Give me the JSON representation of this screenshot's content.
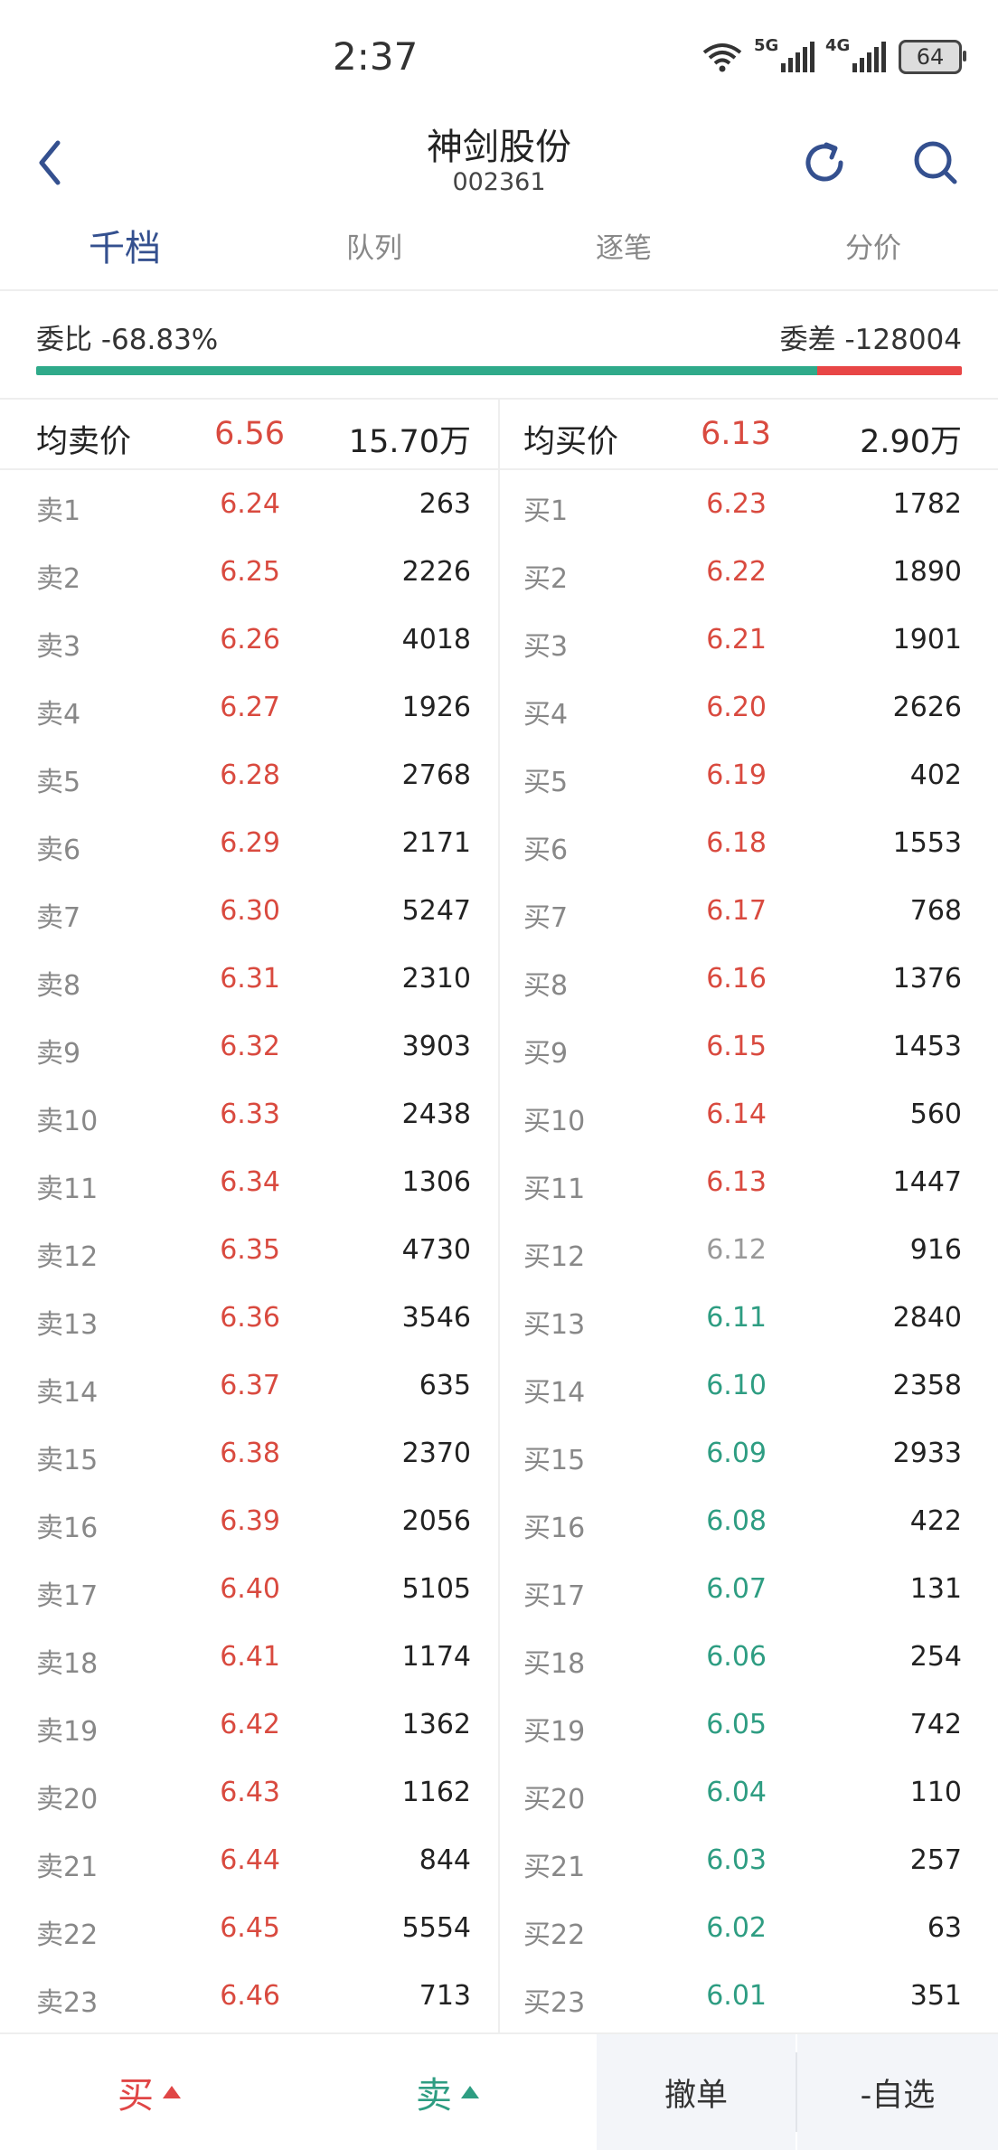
{
  "status_bar": {
    "time": "2:37",
    "net1": "5G",
    "net2": "4G",
    "battery": "64"
  },
  "header": {
    "title": "神剑股份",
    "code": "002361"
  },
  "tabs": [
    "千档",
    "队列",
    "逐笔",
    "分价"
  ],
  "ratio": {
    "left_text": "委比 -68.83%",
    "right_text": "委差 -128004",
    "ratio_value": -68.83,
    "colors": {
      "green": "#2faa8a",
      "red": "#e84646"
    }
  },
  "sell": {
    "avg_label": "均卖价",
    "avg_price": "6.56",
    "avg_vol": "15.70万",
    "levels": [
      {
        "label": "卖1",
        "price": "6.24",
        "vol": "263",
        "dir": "up"
      },
      {
        "label": "卖2",
        "price": "6.25",
        "vol": "2226",
        "dir": "up"
      },
      {
        "label": "卖3",
        "price": "6.26",
        "vol": "4018",
        "dir": "up"
      },
      {
        "label": "卖4",
        "price": "6.27",
        "vol": "1926",
        "dir": "up"
      },
      {
        "label": "卖5",
        "price": "6.28",
        "vol": "2768",
        "dir": "up"
      },
      {
        "label": "卖6",
        "price": "6.29",
        "vol": "2171",
        "dir": "up"
      },
      {
        "label": "卖7",
        "price": "6.30",
        "vol": "5247",
        "dir": "up"
      },
      {
        "label": "卖8",
        "price": "6.31",
        "vol": "2310",
        "dir": "up"
      },
      {
        "label": "卖9",
        "price": "6.32",
        "vol": "3903",
        "dir": "up"
      },
      {
        "label": "卖10",
        "price": "6.33",
        "vol": "2438",
        "dir": "up"
      },
      {
        "label": "卖11",
        "price": "6.34",
        "vol": "1306",
        "dir": "up"
      },
      {
        "label": "卖12",
        "price": "6.35",
        "vol": "4730",
        "dir": "up"
      },
      {
        "label": "卖13",
        "price": "6.36",
        "vol": "3546",
        "dir": "up"
      },
      {
        "label": "卖14",
        "price": "6.37",
        "vol": "635",
        "dir": "up"
      },
      {
        "label": "卖15",
        "price": "6.38",
        "vol": "2370",
        "dir": "up"
      },
      {
        "label": "卖16",
        "price": "6.39",
        "vol": "2056",
        "dir": "up"
      },
      {
        "label": "卖17",
        "price": "6.40",
        "vol": "5105",
        "dir": "up"
      },
      {
        "label": "卖18",
        "price": "6.41",
        "vol": "1174",
        "dir": "up"
      },
      {
        "label": "卖19",
        "price": "6.42",
        "vol": "1362",
        "dir": "up"
      },
      {
        "label": "卖20",
        "price": "6.43",
        "vol": "1162",
        "dir": "up"
      },
      {
        "label": "卖21",
        "price": "6.44",
        "vol": "844",
        "dir": "up"
      },
      {
        "label": "卖22",
        "price": "6.45",
        "vol": "5554",
        "dir": "up"
      },
      {
        "label": "卖23",
        "price": "6.46",
        "vol": "713",
        "dir": "up"
      }
    ]
  },
  "buy": {
    "avg_label": "均买价",
    "avg_price": "6.13",
    "avg_vol": "2.90万",
    "levels": [
      {
        "label": "买1",
        "price": "6.23",
        "vol": "1782",
        "dir": "up"
      },
      {
        "label": "买2",
        "price": "6.22",
        "vol": "1890",
        "dir": "up"
      },
      {
        "label": "买3",
        "price": "6.21",
        "vol": "1901",
        "dir": "up"
      },
      {
        "label": "买4",
        "price": "6.20",
        "vol": "2626",
        "dir": "up"
      },
      {
        "label": "买5",
        "price": "6.19",
        "vol": "402",
        "dir": "up"
      },
      {
        "label": "买6",
        "price": "6.18",
        "vol": "1553",
        "dir": "up"
      },
      {
        "label": "买7",
        "price": "6.17",
        "vol": "768",
        "dir": "up"
      },
      {
        "label": "买8",
        "price": "6.16",
        "vol": "1376",
        "dir": "up"
      },
      {
        "label": "买9",
        "price": "6.15",
        "vol": "1453",
        "dir": "up"
      },
      {
        "label": "买10",
        "price": "6.14",
        "vol": "560",
        "dir": "up"
      },
      {
        "label": "买11",
        "price": "6.13",
        "vol": "1447",
        "dir": "up"
      },
      {
        "label": "买12",
        "price": "6.12",
        "vol": "916",
        "dir": "flat"
      },
      {
        "label": "买13",
        "price": "6.11",
        "vol": "2840",
        "dir": "down"
      },
      {
        "label": "买14",
        "price": "6.10",
        "vol": "2358",
        "dir": "down"
      },
      {
        "label": "买15",
        "price": "6.09",
        "vol": "2933",
        "dir": "down"
      },
      {
        "label": "买16",
        "price": "6.08",
        "vol": "422",
        "dir": "down"
      },
      {
        "label": "买17",
        "price": "6.07",
        "vol": "131",
        "dir": "down"
      },
      {
        "label": "买18",
        "price": "6.06",
        "vol": "254",
        "dir": "down"
      },
      {
        "label": "买19",
        "price": "6.05",
        "vol": "742",
        "dir": "down"
      },
      {
        "label": "买20",
        "price": "6.04",
        "vol": "110",
        "dir": "down"
      },
      {
        "label": "买21",
        "price": "6.03",
        "vol": "257",
        "dir": "down"
      },
      {
        "label": "买22",
        "price": "6.02",
        "vol": "63",
        "dir": "down"
      },
      {
        "label": "买23",
        "price": "6.01",
        "vol": "351",
        "dir": "down"
      }
    ]
  },
  "bottom": {
    "buy": "买",
    "sell": "卖",
    "cancel": "撤单",
    "fav": "-自选"
  },
  "icons": {
    "back": "chevron-left-icon",
    "refresh": "refresh-icon",
    "search": "search-icon"
  }
}
